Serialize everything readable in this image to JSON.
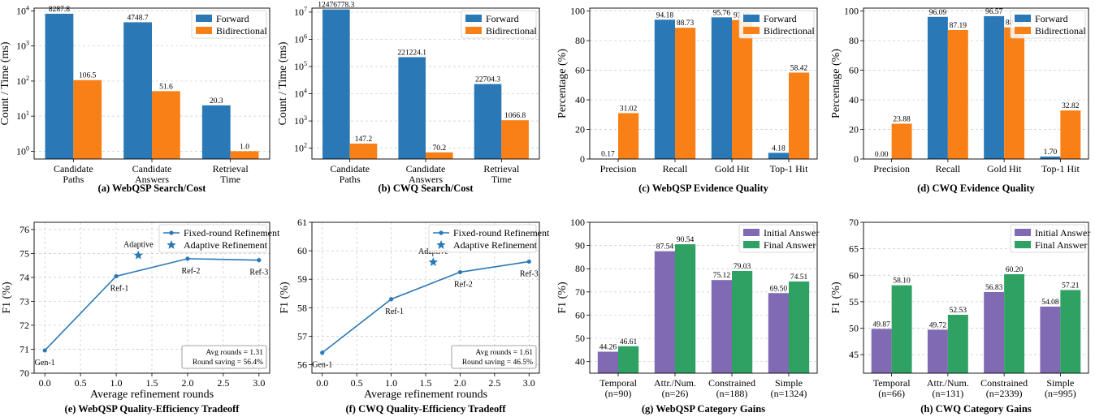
{
  "colors": {
    "forward": "#2a78b6",
    "bidirectional": "#f98016",
    "initial": "#7f6ab3",
    "final": "#2fa162",
    "line": "#2a78b6",
    "grid": "#c8c8c8"
  },
  "chart_data": [
    {
      "type": "bar",
      "id": "a",
      "scale": "log",
      "caption": "(a) WebQSP Search/Cost",
      "ylabel": "Count / Time (ms)",
      "categories": [
        "Candidate\nPaths",
        "Candidate\nAnswers",
        "Retrieval\nTime"
      ],
      "ylim": [
        0.6,
        12000
      ],
      "yticks": [
        {
          "value": 1,
          "base": "10",
          "exp": "0"
        },
        {
          "value": 10,
          "base": "10",
          "exp": "1"
        },
        {
          "value": 100,
          "base": "10",
          "exp": "2"
        },
        {
          "value": 1000,
          "base": "10",
          "exp": "3"
        },
        {
          "value": 10000,
          "base": "10",
          "exp": "4"
        }
      ],
      "legend": "top-right",
      "series": [
        {
          "name": "Forward",
          "color": "#2a78b6",
          "values": [
            8287.8,
            4748.7,
            20.3
          ],
          "labels": [
            "8287.8",
            "4748.7",
            "20.3"
          ]
        },
        {
          "name": "Bidirectional",
          "color": "#f98016",
          "values": [
            106.5,
            51.6,
            1.0
          ],
          "labels": [
            "106.5",
            "51.6",
            "1.0"
          ]
        }
      ]
    },
    {
      "type": "bar",
      "id": "b",
      "scale": "log",
      "caption": "(b) CWQ Search/Cost",
      "ylabel": "Count / Time (ms)",
      "categories": [
        "Candidate\nPaths",
        "Candidate\nAnswers",
        "Retrieval\nTime"
      ],
      "ylim": [
        40,
        14000000
      ],
      "yticks": [
        {
          "value": 100,
          "base": "10",
          "exp": "2"
        },
        {
          "value": 1000,
          "base": "10",
          "exp": "3"
        },
        {
          "value": 10000,
          "base": "10",
          "exp": "4"
        },
        {
          "value": 100000,
          "base": "10",
          "exp": "5"
        },
        {
          "value": 1000000,
          "base": "10",
          "exp": "6"
        },
        {
          "value": 10000000,
          "base": "10",
          "exp": "7"
        }
      ],
      "legend": "top-right",
      "series": [
        {
          "name": "Forward",
          "color": "#2a78b6",
          "values": [
            12476778.3,
            221224.1,
            22704.3
          ],
          "labels": [
            "12476778.3",
            "221224.1",
            "22704.3"
          ]
        },
        {
          "name": "Bidirectional",
          "color": "#f98016",
          "values": [
            147.2,
            70.2,
            1066.8
          ],
          "labels": [
            "147.2",
            "70.2",
            "1066.8"
          ]
        }
      ]
    },
    {
      "type": "bar",
      "id": "c",
      "scale": "linear",
      "caption": "(c) WebQSP Evidence Quality",
      "ylabel": "Percentage (%)",
      "categories": [
        "Precision",
        "Recall",
        "Gold Hit",
        "Top-1 Hit"
      ],
      "ylim": [
        0,
        102
      ],
      "yticks": [
        0,
        20,
        40,
        60,
        80,
        100
      ],
      "legend": "top-right",
      "series": [
        {
          "name": "Forward",
          "color": "#2a78b6",
          "values": [
            0.17,
            94.18,
            95.76,
            4.18
          ],
          "labels": [
            "0.17",
            "94.18",
            "95.76",
            "4.18"
          ]
        },
        {
          "name": "Bidirectional",
          "color": "#f98016",
          "values": [
            31.02,
            88.73,
            93.98,
            58.42
          ],
          "labels": [
            "31.02",
            "88.73",
            "93.98",
            "58.42"
          ]
        }
      ]
    },
    {
      "type": "bar",
      "id": "d",
      "scale": "linear",
      "caption": "(d) CWQ Evidence Quality",
      "ylabel": "Percentage (%)",
      "categories": [
        "Precision",
        "Recall",
        "Gold Hit",
        "Top-1 Hit"
      ],
      "ylim": [
        0,
        102
      ],
      "yticks": [
        0,
        20,
        40,
        60,
        80,
        100
      ],
      "legend": "top-right",
      "series": [
        {
          "name": "Forward",
          "color": "#2a78b6",
          "values": [
            0.0,
            96.09,
            96.57,
            1.7
          ],
          "labels": [
            "0.00",
            "96.09",
            "96.57",
            "1.70"
          ]
        },
        {
          "name": "Bidirectional",
          "color": "#f98016",
          "values": [
            23.88,
            87.19,
            88.98,
            32.82
          ],
          "labels": [
            "23.88",
            "87.19",
            "88.98",
            "32.82"
          ]
        }
      ]
    },
    {
      "type": "line",
      "id": "e",
      "caption": "(e) WebQSP Quality-Efficiency Tradeoff",
      "xlabel": "Average refinement rounds",
      "ylabel": "F1 (%)",
      "xlim": [
        -0.15,
        3.15
      ],
      "ylim": [
        70,
        76.3
      ],
      "xticks": [
        0.0,
        0.5,
        1.0,
        1.5,
        2.0,
        2.5,
        3.0
      ],
      "xticklabels": [
        "0.0",
        "0.5",
        "1.0",
        "1.5",
        "2.0",
        "2.5",
        "3.0"
      ],
      "yticks": [
        70,
        71,
        72,
        73,
        74,
        75,
        76
      ],
      "legend": "top-right",
      "series": [
        {
          "name": "Fixed-round Refinement",
          "color": "#2a78b6",
          "x": [
            0,
            1,
            2,
            3
          ],
          "y": [
            70.95,
            74.05,
            74.78,
            74.72
          ],
          "labels": [
            "Gen-1",
            "Ref-1",
            "Ref-2",
            "Ref-3"
          ]
        },
        {
          "name": "Adaptive Refinement",
          "color": "#2a78b6",
          "marker": "star",
          "x": [
            1.31
          ],
          "y": [
            74.92
          ],
          "labels": [
            "Adaptive"
          ]
        }
      ],
      "annotation": [
        "Avg rounds = 1.31",
        "Round saving = 56.4%"
      ]
    },
    {
      "type": "line",
      "id": "f",
      "caption": "(f) CWQ Quality-Efficiency Tradeoff",
      "xlabel": "Average refinement rounds",
      "ylabel": "F1 (%)",
      "xlim": [
        -0.15,
        3.15
      ],
      "ylim": [
        55.7,
        61
      ],
      "xticks": [
        0.0,
        0.5,
        1.0,
        1.5,
        2.0,
        2.5,
        3.0
      ],
      "xticklabels": [
        "0.0",
        "0.5",
        "1.0",
        "1.5",
        "2.0",
        "2.5",
        "3.0"
      ],
      "yticks": [
        56,
        57,
        58,
        59,
        60,
        61
      ],
      "legend": "top-right",
      "series": [
        {
          "name": "Fixed-round Refinement",
          "color": "#2a78b6",
          "x": [
            0,
            1,
            2,
            3
          ],
          "y": [
            56.42,
            58.3,
            59.25,
            59.62
          ],
          "labels": [
            "Gen-1",
            "Ref-1",
            "Ref-2",
            "Ref-3"
          ]
        },
        {
          "name": "Adaptive Refinement",
          "color": "#2a78b6",
          "marker": "star",
          "x": [
            1.61
          ],
          "y": [
            59.6
          ],
          "labels": [
            "Adaptive"
          ]
        }
      ],
      "annotation": [
        "Avg rounds = 1.61",
        "Round saving = 46.5%"
      ]
    },
    {
      "type": "bar",
      "id": "g",
      "scale": "linear",
      "caption": "(g) WebQSP Category Gains",
      "ylabel": "F1 (%)",
      "categories": [
        "Temporal\n(n=90)",
        "Attr./Num.\n(n=26)",
        "Constrained\n(n=188)",
        "Simple\n(n=1324)"
      ],
      "ylim": [
        35,
        100
      ],
      "yticks": [
        40,
        50,
        60,
        70,
        80,
        90,
        100
      ],
      "legend": "top-right",
      "series": [
        {
          "name": "Initial Answer",
          "color": "#7f6ab3",
          "values": [
            44.26,
            87.54,
            75.12,
            69.5
          ],
          "labels": [
            "44.26",
            "87.54",
            "75.12",
            "69.50"
          ]
        },
        {
          "name": "Final Answer",
          "color": "#2fa162",
          "values": [
            46.61,
            90.54,
            79.03,
            74.51
          ],
          "labels": [
            "46.61",
            "90.54",
            "79.03",
            "74.51"
          ]
        }
      ]
    },
    {
      "type": "bar",
      "id": "h",
      "scale": "linear",
      "caption": "(h) CWQ Category Gains",
      "ylabel": "F1 (%)",
      "categories": [
        "Temporal\n(n=66)",
        "Attr./Num.\n(n=131)",
        "Constrained\n(n=2339)",
        "Simple\n(n=995)"
      ],
      "ylim": [
        41.5,
        70
      ],
      "yticks": [
        45,
        50,
        55,
        60,
        65,
        70
      ],
      "legend": "top-right",
      "series": [
        {
          "name": "Initial Answer",
          "color": "#7f6ab3",
          "values": [
            49.87,
            49.72,
            56.83,
            54.08
          ],
          "labels": [
            "49.87",
            "49.72",
            "56.83",
            "54.08"
          ]
        },
        {
          "name": "Final Answer",
          "color": "#2fa162",
          "values": [
            58.1,
            52.53,
            60.2,
            57.21
          ],
          "labels": [
            "58.10",
            "52.53",
            "60.20",
            "57.21"
          ]
        }
      ]
    }
  ]
}
